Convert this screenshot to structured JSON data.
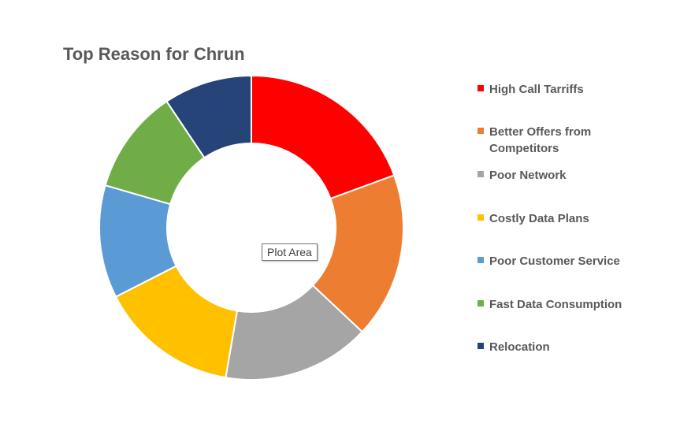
{
  "chart_data": {
    "type": "pie",
    "title": "Top Reason for Chrun",
    "categories": [
      "High Call Tarriffs",
      "Better Offers from Competitors",
      "Poor Network",
      "Costly Data Plans",
      "Poor Customer Service",
      "Fast Data Consumption",
      "Relocation"
    ],
    "values": [
      19.4,
      17.6,
      15.7,
      14.8,
      12.0,
      11.1,
      9.4
    ],
    "colors": [
      "#ff0000",
      "#ed7d31",
      "#a5a5a5",
      "#ffc000",
      "#5b9bd5",
      "#70ad47",
      "#264478"
    ],
    "hole": "donut",
    "legend_position": "right"
  },
  "tooltip": {
    "text": "Plot Area"
  }
}
